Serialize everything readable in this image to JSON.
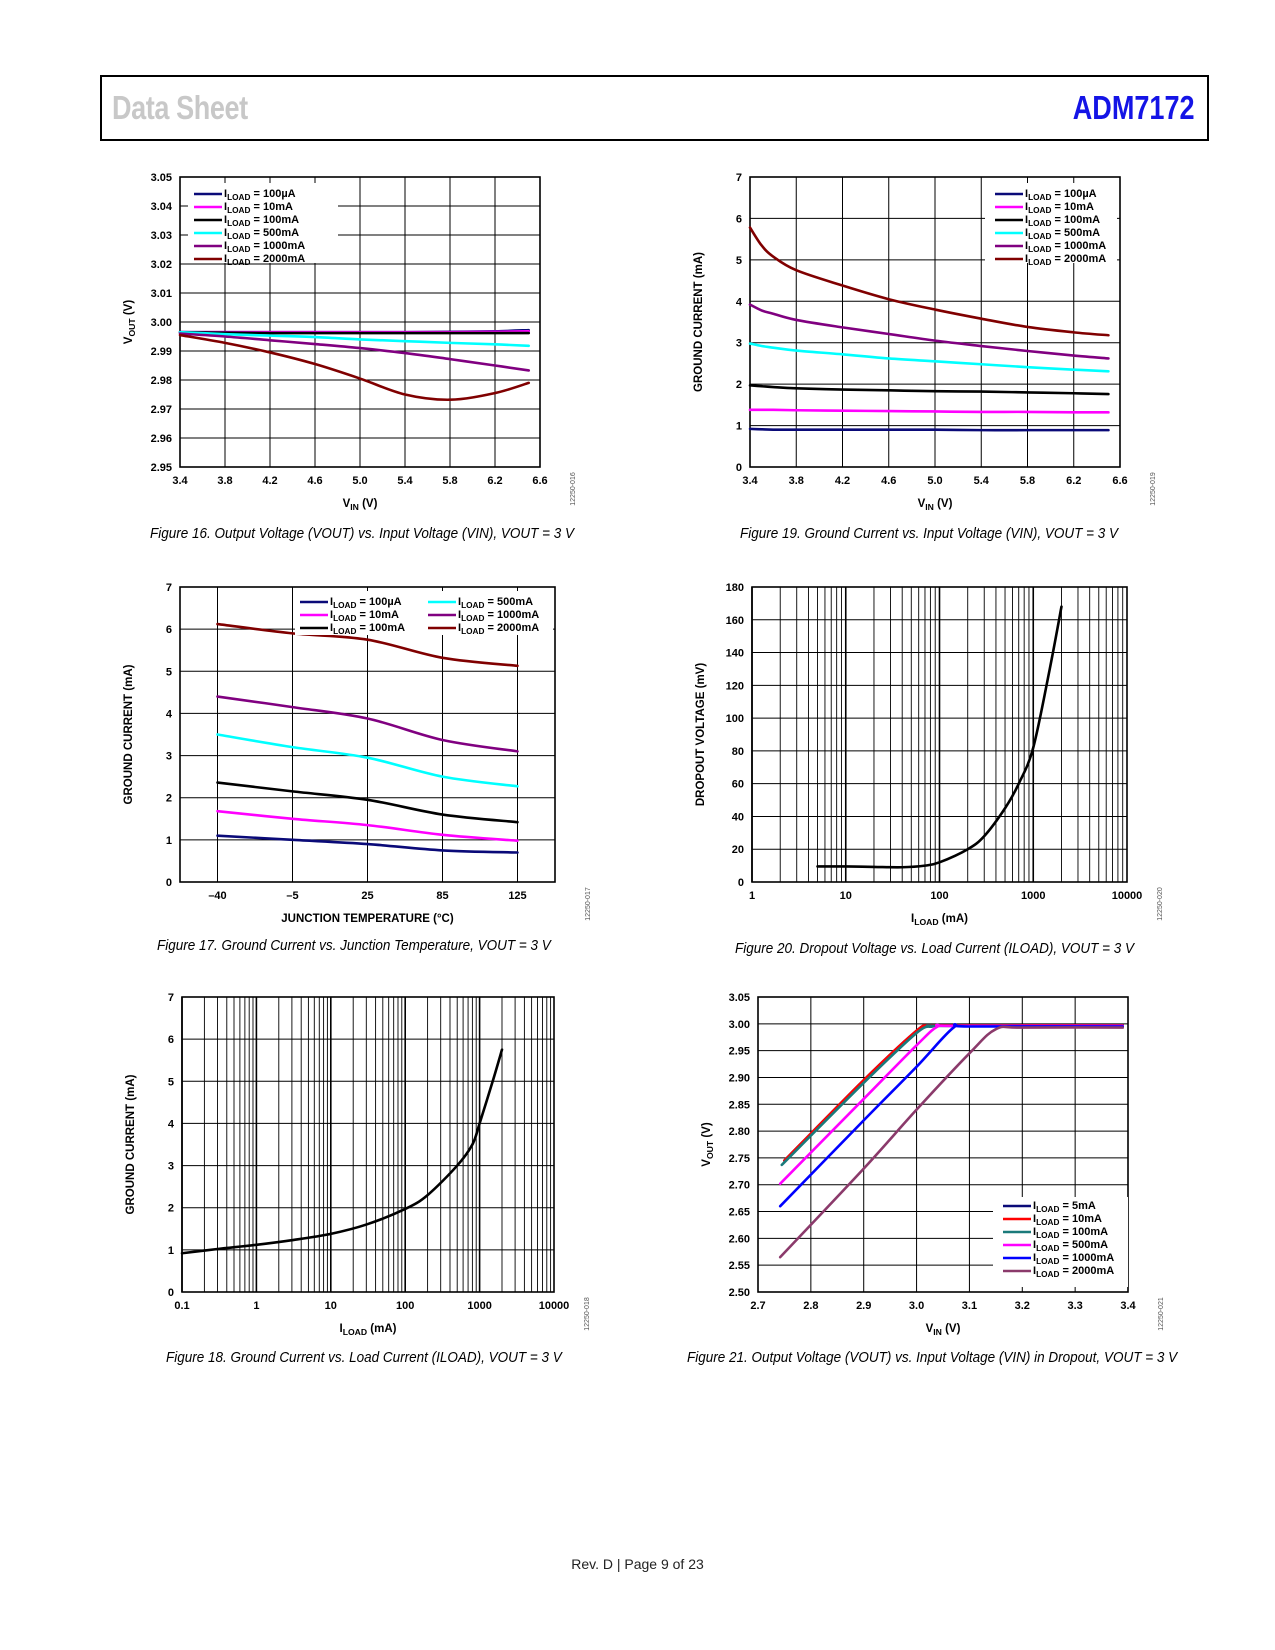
{
  "header": {
    "left_title": "Data Sheet",
    "right_title": "ADM7172",
    "right_color": "#1414e6",
    "left_color": "#c8c8c8"
  },
  "footer": {
    "text": "Rev. D | Page 9 of 23"
  },
  "captions": {
    "fig16": "Figure 16. Output Voltage (VOUT) vs. Input Voltage (VIN), VOUT = 3 V",
    "fig17": "Figure 17. Ground Current vs. Junction Temperature, VOUT = 3 V",
    "fig18": "Figure 18. Ground Current vs. Load Current (ILOAD), VOUT = 3 V",
    "fig19": "Figure 19. Ground Current vs. Input Voltage (VIN), VOUT = 3 V",
    "fig20": "Figure 20. Dropout Voltage vs. Load Current (ILOAD), VOUT = 3 V",
    "fig21": "Figure 21. Output Voltage (VOUT) vs. Input Voltage (VIN) in Dropout, VOUT = 3 V"
  },
  "chart_data": [
    {
      "id": "fig16",
      "type": "line",
      "code": "12250-016",
      "title": "Output Voltage vs. Input Voltage",
      "xlabel": "VIN (V)",
      "ylabel": "VOUT (V)",
      "xlim": [
        3.4,
        6.6
      ],
      "ylim": [
        2.95,
        3.05
      ],
      "xticks": [
        3.4,
        3.8,
        4.2,
        4.6,
        5.0,
        5.4,
        5.8,
        6.2,
        6.6
      ],
      "xtick_labels": [
        "3.4",
        "3.8",
        "4.2",
        "4.6",
        "5.0",
        "5.4",
        "5.8",
        "6.2",
        "6.6"
      ],
      "yticks": [
        2.95,
        2.96,
        2.97,
        2.98,
        2.99,
        3.0,
        3.01,
        3.02,
        3.03,
        3.04,
        3.05
      ],
      "ytick_labels": [
        "2.95",
        "2.96",
        "2.97",
        "2.98",
        "2.99",
        "3.00",
        "3.01",
        "3.02",
        "3.03",
        "3.04",
        "3.05"
      ],
      "grid": true,
      "legend": "top-left",
      "x_scale": "linear",
      "x": [
        3.4,
        3.8,
        4.2,
        4.6,
        5.0,
        5.4,
        5.8,
        6.2,
        6.5
      ],
      "series": [
        {
          "name": "ILOAD = 100µA",
          "color": "#0a0a78",
          "values": [
            2.9965,
            2.9965,
            2.9965,
            2.9965,
            2.9965,
            2.9965,
            2.9966,
            2.9968,
            2.9972
          ]
        },
        {
          "name": "ILOAD = 10mA",
          "color": "#ff00ff",
          "values": [
            2.9965,
            2.9965,
            2.9965,
            2.9965,
            2.9965,
            2.9965,
            2.9965,
            2.9966,
            2.9968
          ]
        },
        {
          "name": "ILOAD = 100mA",
          "color": "#000000",
          "values": [
            2.9965,
            2.9963,
            2.9962,
            2.9962,
            2.9962,
            2.9962,
            2.9962,
            2.9962,
            2.9962
          ]
        },
        {
          "name": "ILOAD = 500mA",
          "color": "#00ffff",
          "values": [
            2.9965,
            2.9958,
            2.9953,
            2.9948,
            2.994,
            2.9934,
            2.9928,
            2.9923,
            2.9918
          ]
        },
        {
          "name": "ILOAD = 1000mA",
          "color": "#800080",
          "values": [
            2.996,
            2.995,
            2.9937,
            2.9924,
            2.991,
            2.9893,
            2.9872,
            2.985,
            2.9833
          ]
        },
        {
          "name": "ILOAD = 2000mA",
          "color": "#800000",
          "values": [
            2.9955,
            2.9928,
            2.9895,
            2.9855,
            2.9805,
            2.975,
            2.9732,
            2.9755,
            2.979
          ]
        }
      ]
    },
    {
      "id": "fig19",
      "type": "line",
      "code": "12250-019",
      "title": "Ground Current vs. Input Voltage",
      "xlabel": "VIN (V)",
      "ylabel": "GROUND CURRENT (mA)",
      "xlim": [
        3.4,
        6.6
      ],
      "ylim": [
        0,
        7
      ],
      "xticks": [
        3.4,
        3.8,
        4.2,
        4.6,
        5.0,
        5.4,
        5.8,
        6.2,
        6.6
      ],
      "xtick_labels": [
        "3.4",
        "3.8",
        "4.2",
        "4.6",
        "5.0",
        "5.4",
        "5.8",
        "6.2",
        "6.6"
      ],
      "yticks": [
        0,
        1,
        2,
        3,
        4,
        5,
        6,
        7
      ],
      "ytick_labels": [
        "0",
        "1",
        "2",
        "3",
        "4",
        "5",
        "6",
        "7"
      ],
      "grid": true,
      "legend": "top-right",
      "x_scale": "linear",
      "x": [
        3.4,
        3.5,
        3.6,
        3.8,
        4.2,
        4.6,
        5.0,
        5.4,
        5.8,
        6.2,
        6.5
      ],
      "series": [
        {
          "name": "ILOAD = 100µA",
          "color": "#0a0a78",
          "values": [
            0.92,
            0.91,
            0.9,
            0.9,
            0.9,
            0.9,
            0.9,
            0.89,
            0.89,
            0.89,
            0.89
          ]
        },
        {
          "name": "ILOAD = 10mA",
          "color": "#ff00ff",
          "values": [
            1.38,
            1.38,
            1.38,
            1.37,
            1.36,
            1.35,
            1.34,
            1.33,
            1.33,
            1.32,
            1.32
          ]
        },
        {
          "name": "ILOAD = 100mA",
          "color": "#000000",
          "values": [
            1.97,
            1.95,
            1.93,
            1.9,
            1.87,
            1.85,
            1.83,
            1.82,
            1.8,
            1.78,
            1.76
          ]
        },
        {
          "name": "ILOAD = 500mA",
          "color": "#00ffff",
          "values": [
            2.98,
            2.92,
            2.88,
            2.81,
            2.72,
            2.62,
            2.55,
            2.48,
            2.41,
            2.35,
            2.31
          ]
        },
        {
          "name": "ILOAD = 1000mA",
          "color": "#800080",
          "values": [
            3.92,
            3.78,
            3.7,
            3.55,
            3.37,
            3.21,
            3.05,
            2.92,
            2.8,
            2.69,
            2.62
          ]
        },
        {
          "name": "ILOAD = 2000mA",
          "color": "#800000",
          "values": [
            5.78,
            5.35,
            5.08,
            4.75,
            4.38,
            4.05,
            3.8,
            3.58,
            3.38,
            3.25,
            3.18
          ]
        }
      ]
    },
    {
      "id": "fig17",
      "type": "line",
      "code": "12250-017",
      "title": "Ground Current vs. Junction Temperature",
      "xlabel": "JUNCTION TEMPERATURE (°C)",
      "ylabel": "GROUND CURRENT (mA)",
      "xlim": [
        0,
        5
      ],
      "ylim": [
        0,
        7
      ],
      "xticks": [
        0.5,
        1.5,
        2.5,
        3.5,
        4.5
      ],
      "xtick_labels": [
        "–40",
        "–5",
        "25",
        "85",
        "125"
      ],
      "yticks": [
        0,
        1,
        2,
        3,
        4,
        5,
        6,
        7
      ],
      "ytick_labels": [
        "0",
        "1",
        "2",
        "3",
        "4",
        "5",
        "6",
        "7"
      ],
      "grid": true,
      "legend": "top-right, two columns",
      "x_scale": "categorical",
      "x": [
        0.5,
        1.5,
        2.5,
        3.5,
        4.5
      ],
      "x_values_celsius": [
        -40,
        -5,
        25,
        85,
        125
      ],
      "series": [
        {
          "name": "ILOAD = 100µA",
          "color": "#0a0a78",
          "values": [
            1.1,
            1.0,
            0.9,
            0.75,
            0.7
          ]
        },
        {
          "name": "ILOAD = 10mA",
          "color": "#ff00ff",
          "values": [
            1.68,
            1.5,
            1.35,
            1.12,
            0.98
          ]
        },
        {
          "name": "ILOAD = 100mA",
          "color": "#000000",
          "values": [
            2.36,
            2.15,
            1.95,
            1.6,
            1.42
          ]
        },
        {
          "name": "ILOAD = 500mA",
          "color": "#00ffff",
          "values": [
            3.5,
            3.2,
            2.95,
            2.5,
            2.27
          ]
        },
        {
          "name": "ILOAD = 1000mA",
          "color": "#800080",
          "values": [
            4.4,
            4.15,
            3.88,
            3.37,
            3.1
          ]
        },
        {
          "name": "ILOAD = 2000mA",
          "color": "#800000",
          "values": [
            6.12,
            5.9,
            5.75,
            5.32,
            5.13
          ]
        }
      ]
    },
    {
      "id": "fig20",
      "type": "line",
      "code": "12250-020",
      "title": "Dropout Voltage vs. Load Current",
      "xlabel": "ILOAD (mA)",
      "ylabel": "DROPOUT VOLTAGE (mV)",
      "xlim": [
        1,
        10000
      ],
      "ylim": [
        0,
        180
      ],
      "x_scale": "log",
      "xticks": [
        1,
        10,
        100,
        1000,
        10000
      ],
      "xtick_labels": [
        "1",
        "10",
        "100",
        "1000",
        "10000"
      ],
      "yticks": [
        0,
        20,
        40,
        60,
        80,
        100,
        120,
        140,
        160,
        180
      ],
      "ytick_labels": [
        "0",
        "20",
        "40",
        "60",
        "80",
        "100",
        "120",
        "140",
        "160",
        "180"
      ],
      "grid": true,
      "legend": "none",
      "x": [
        5,
        10,
        20,
        40,
        70,
        100,
        200,
        300,
        500,
        700,
        1000,
        1500,
        2000
      ],
      "series": [
        {
          "name": "Dropout",
          "color": "#000000",
          "values": [
            9.5,
            9.5,
            9.2,
            9,
            10,
            12,
            20,
            28,
            45,
            60,
            82,
            130,
            168
          ]
        }
      ]
    },
    {
      "id": "fig18",
      "type": "line",
      "code": "12250-018",
      "title": "Ground Current vs. Load Current",
      "xlabel": "ILOAD (mA)",
      "ylabel": "GROUND CURRENT (mA)",
      "xlim": [
        0.1,
        10000
      ],
      "ylim": [
        0,
        7
      ],
      "x_scale": "log",
      "xticks": [
        0.1,
        1,
        10,
        100,
        1000,
        10000
      ],
      "xtick_labels": [
        "0.1",
        "1",
        "10",
        "100",
        "1000",
        "10000"
      ],
      "yticks": [
        0,
        1,
        2,
        3,
        4,
        5,
        6,
        7
      ],
      "ytick_labels": [
        "0",
        "1",
        "2",
        "3",
        "4",
        "5",
        "6",
        "7"
      ],
      "grid": true,
      "legend": "none",
      "x": [
        0.1,
        0.3,
        1,
        3,
        10,
        30,
        100,
        200,
        500,
        800,
        1000,
        1500,
        2000
      ],
      "series": [
        {
          "name": "Ground current",
          "color": "#000000",
          "values": [
            0.92,
            1.02,
            1.12,
            1.23,
            1.38,
            1.6,
            1.97,
            2.3,
            3.0,
            3.5,
            4.0,
            5.0,
            5.75
          ]
        }
      ]
    },
    {
      "id": "fig21",
      "type": "line",
      "code": "12250-021",
      "title": "Output Voltage vs. Input Voltage in Dropout",
      "xlabel": "VIN (V)",
      "ylabel": "VOUT (V)",
      "xlim": [
        2.7,
        3.4
      ],
      "ylim": [
        2.5,
        3.05
      ],
      "x_scale": "linear",
      "xticks": [
        2.7,
        2.8,
        2.9,
        3.0,
        3.1,
        3.2,
        3.3,
        3.4
      ],
      "xtick_labels": [
        "2.7",
        "2.8",
        "2.9",
        "3.0",
        "3.1",
        "3.2",
        "3.3",
        "3.4"
      ],
      "yticks": [
        2.5,
        2.55,
        2.6,
        2.65,
        2.7,
        2.75,
        2.8,
        2.85,
        2.9,
        2.95,
        3.0,
        3.05
      ],
      "ytick_labels": [
        "2.50",
        "2.55",
        "2.60",
        "2.65",
        "2.70",
        "2.75",
        "2.80",
        "2.85",
        "2.90",
        "2.95",
        "3.00",
        "3.05"
      ],
      "grid": true,
      "legend": "bottom-right",
      "series": [
        {
          "name": "ILOAD = 5mA",
          "color": "#0a0a78",
          "x": [
            2.75,
            2.9,
            3.0,
            3.02,
            3.05,
            3.39
          ],
          "values": [
            2.745,
            2.895,
            2.987,
            2.995,
            2.997,
            2.997
          ]
        },
        {
          "name": "ILOAD = 10mA",
          "color": "#ff0000",
          "x": [
            2.75,
            2.9,
            3.0,
            3.02,
            3.05,
            3.39
          ],
          "values": [
            2.745,
            2.895,
            2.987,
            2.995,
            2.997,
            2.997
          ]
        },
        {
          "name": "ILOAD = 100mA",
          "color": "#1a7a7a",
          "x": [
            2.745,
            2.9,
            3.0,
            3.03,
            3.05,
            3.39
          ],
          "values": [
            2.737,
            2.89,
            2.983,
            2.995,
            2.996,
            2.996
          ]
        },
        {
          "name": "ILOAD = 500mA",
          "color": "#ff00ff",
          "x": [
            2.742,
            2.9,
            3.0,
            3.04,
            3.07,
            3.39
          ],
          "values": [
            2.702,
            2.86,
            2.96,
            2.995,
            2.996,
            2.996
          ]
        },
        {
          "name": "ILOAD = 1000mA",
          "color": "#0000ff",
          "x": [
            2.742,
            2.9,
            3.0,
            3.07,
            3.1,
            3.39
          ],
          "values": [
            2.66,
            2.82,
            2.92,
            2.993,
            2.995,
            2.995
          ]
        },
        {
          "name": "ILOAD = 2000mA",
          "color": "#8b3a6b",
          "x": [
            2.742,
            2.9,
            3.0,
            3.1,
            3.15,
            3.2,
            3.39
          ],
          "values": [
            2.565,
            2.73,
            2.84,
            2.945,
            2.99,
            2.993,
            2.993
          ]
        }
      ]
    }
  ]
}
